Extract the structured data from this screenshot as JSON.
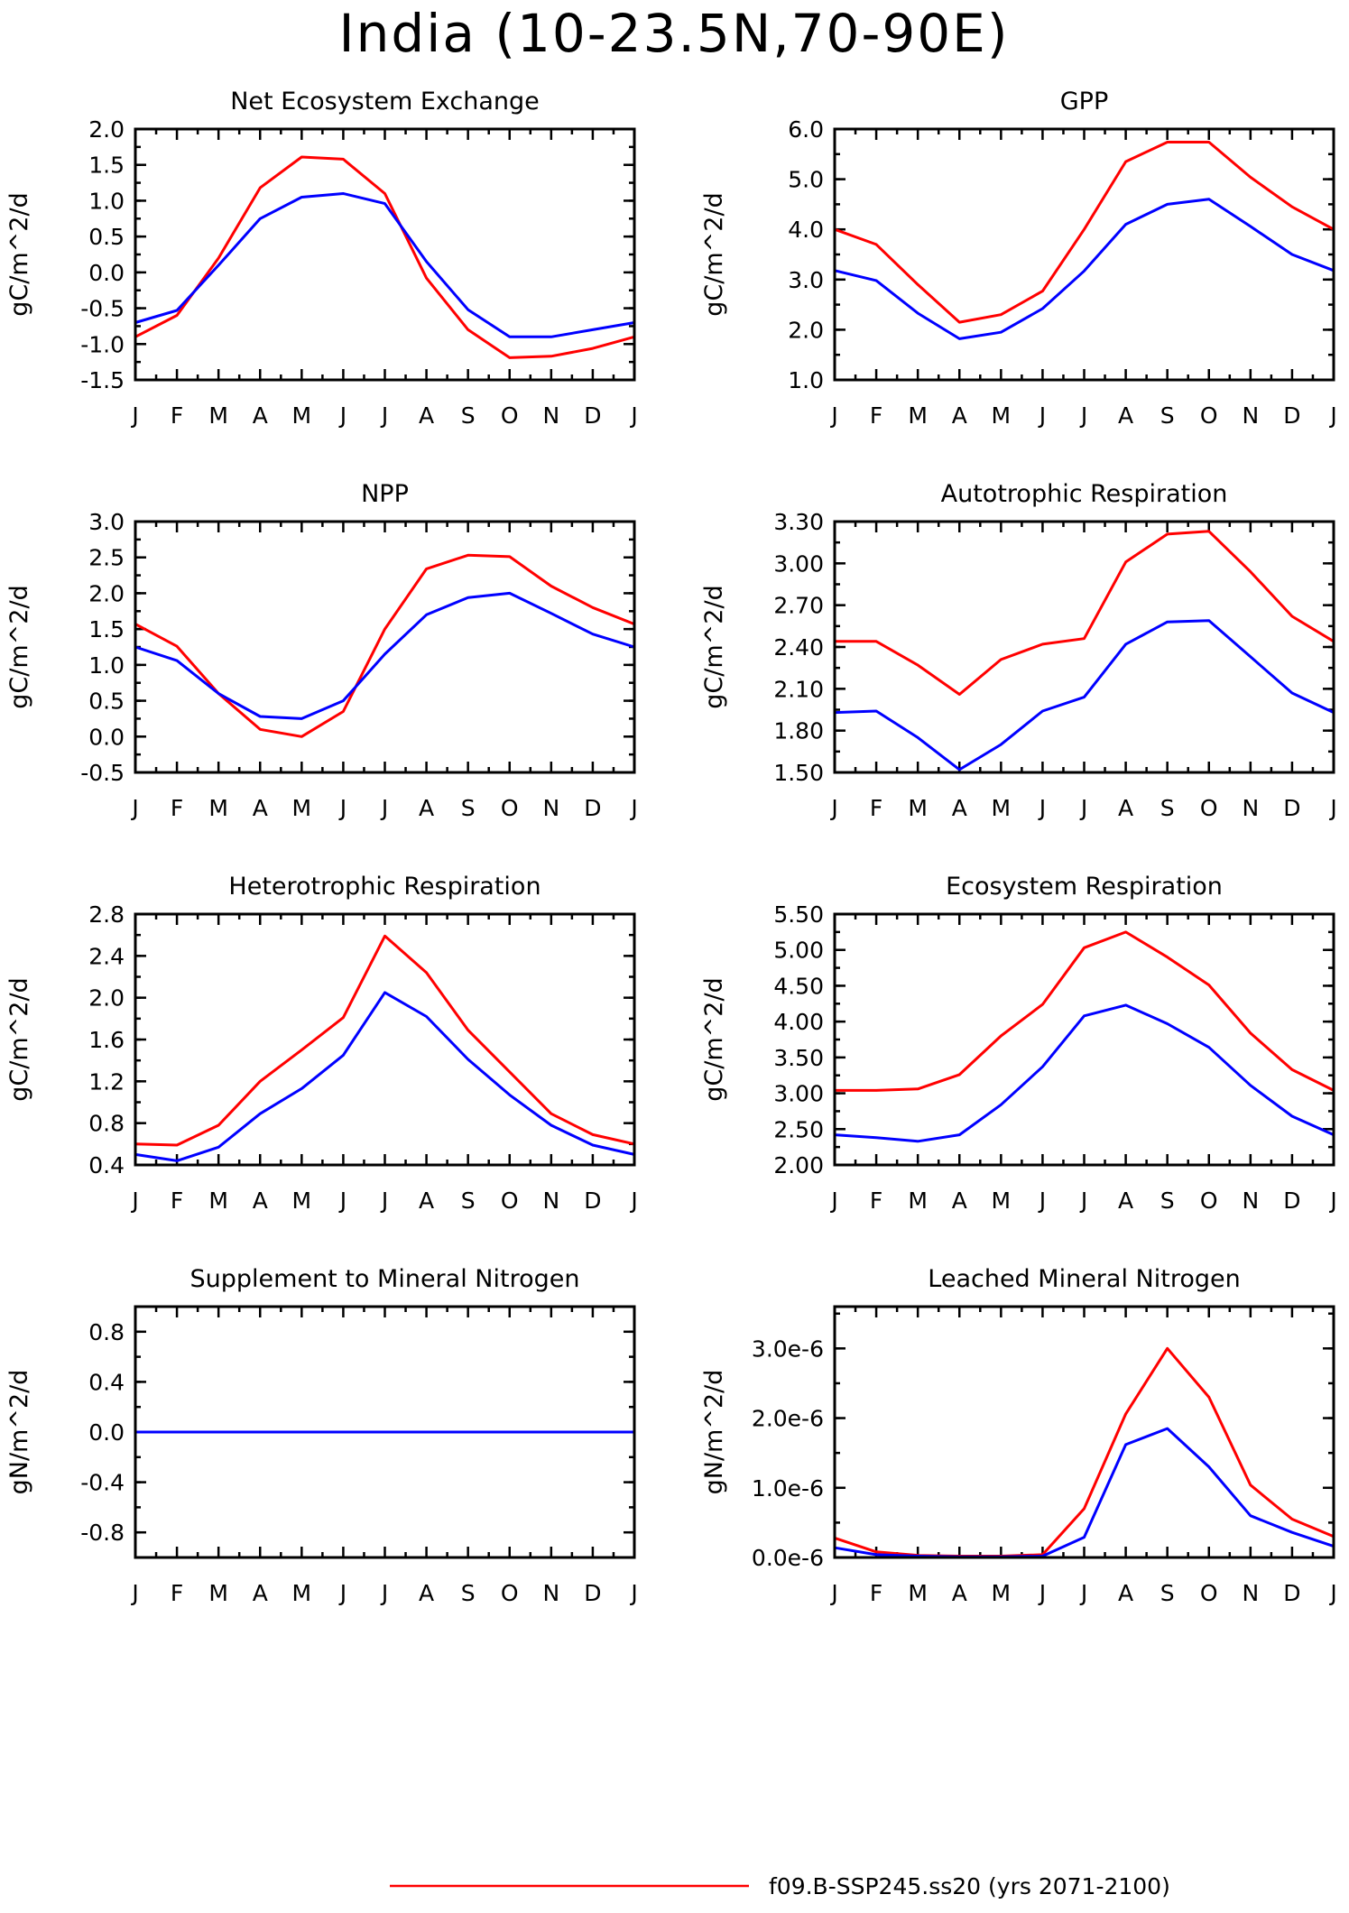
{
  "title": "India (10-23.5N,70-90E)",
  "colors": {
    "red": "#ff0000",
    "blue": "#0000ff"
  },
  "legend": [
    {
      "label": "f09.B-SSP245.ss20 (yrs 2071-2100)",
      "color": "#ff0000"
    }
  ],
  "months": [
    "J",
    "F",
    "M",
    "A",
    "M",
    "J",
    "J",
    "A",
    "S",
    "O",
    "N",
    "D",
    "J"
  ],
  "chart_data": [
    {
      "type": "line",
      "title": "Net Ecosystem Exchange",
      "ylabel": "gC/m^2/d",
      "ylim": [
        -1.5,
        2.0
      ],
      "yticks": [
        -1.5,
        -1.0,
        -0.5,
        0.0,
        0.5,
        1.0,
        1.5,
        2.0
      ],
      "yticklabels": [
        "-1.5",
        "-1.0",
        "-0.5",
        "0.0",
        "0.5",
        "1.0",
        "1.5",
        "2.0"
      ],
      "minor_step": 0.25,
      "series": [
        {
          "color": "#ff0000",
          "values": [
            -0.9,
            -0.6,
            0.2,
            1.18,
            1.61,
            1.58,
            1.1,
            -0.08,
            -0.8,
            -1.19,
            -1.17,
            -1.06,
            -0.9
          ]
        },
        {
          "color": "#0000ff",
          "values": [
            -0.7,
            -0.53,
            0.1,
            0.75,
            1.05,
            1.1,
            0.96,
            0.15,
            -0.52,
            -0.9,
            -0.9,
            -0.8,
            -0.7
          ]
        }
      ]
    },
    {
      "type": "line",
      "title": "GPP",
      "ylabel": "gC/m^2/d",
      "ylim": [
        1.0,
        6.0
      ],
      "yticks": [
        1.0,
        2.0,
        3.0,
        4.0,
        5.0,
        6.0
      ],
      "yticklabels": [
        "1.0",
        "2.0",
        "3.0",
        "4.0",
        "5.0",
        "6.0"
      ],
      "minor_step": 0.5,
      "series": [
        {
          "color": "#ff0000",
          "values": [
            4.0,
            3.7,
            2.9,
            2.15,
            2.3,
            2.77,
            4.0,
            5.35,
            5.74,
            5.74,
            5.04,
            4.45,
            4.0
          ]
        },
        {
          "color": "#0000ff",
          "values": [
            3.18,
            2.98,
            2.33,
            1.82,
            1.95,
            2.42,
            3.17,
            4.1,
            4.5,
            4.6,
            4.06,
            3.5,
            3.18
          ]
        }
      ]
    },
    {
      "type": "line",
      "title": "NPP",
      "ylabel": "gC/m^2/d",
      "ylim": [
        -0.5,
        3.0
      ],
      "yticks": [
        -0.5,
        0.0,
        0.5,
        1.0,
        1.5,
        2.0,
        2.5,
        3.0
      ],
      "yticklabels": [
        "-0.5",
        "0.0",
        "0.5",
        "1.0",
        "1.5",
        "2.0",
        "2.5",
        "3.0"
      ],
      "minor_step": 0.25,
      "series": [
        {
          "color": "#ff0000",
          "values": [
            1.57,
            1.26,
            0.6,
            0.1,
            0.0,
            0.35,
            1.5,
            2.34,
            2.53,
            2.51,
            2.1,
            1.8,
            1.57
          ]
        },
        {
          "color": "#0000ff",
          "values": [
            1.25,
            1.06,
            0.6,
            0.28,
            0.25,
            0.5,
            1.15,
            1.7,
            1.94,
            2.0,
            1.72,
            1.43,
            1.25
          ]
        }
      ]
    },
    {
      "type": "line",
      "title": "Autotrophic Respiration",
      "ylabel": "gC/m^2/d",
      "ylim": [
        1.5,
        3.3
      ],
      "yticks": [
        1.5,
        1.8,
        2.1,
        2.4,
        2.7,
        3.0,
        3.3
      ],
      "yticklabels": [
        "1.50",
        "1.80",
        "2.10",
        "2.40",
        "2.70",
        "3.00",
        "3.30"
      ],
      "minor_step": 0.15,
      "series": [
        {
          "color": "#ff0000",
          "values": [
            2.44,
            2.44,
            2.27,
            2.06,
            2.31,
            2.42,
            2.46,
            3.01,
            3.21,
            3.23,
            2.94,
            2.62,
            2.44
          ]
        },
        {
          "color": "#0000ff",
          "values": [
            1.93,
            1.94,
            1.75,
            1.52,
            1.7,
            1.94,
            2.04,
            2.42,
            2.58,
            2.59,
            2.33,
            2.07,
            1.93
          ]
        }
      ]
    },
    {
      "type": "line",
      "title": "Heterotrophic Respiration",
      "ylabel": "gC/m^2/d",
      "ylim": [
        0.4,
        2.8
      ],
      "yticks": [
        0.4,
        0.8,
        1.2,
        1.6,
        2.0,
        2.4,
        2.8
      ],
      "yticklabels": [
        "0.4",
        "0.8",
        "1.2",
        "1.6",
        "2.0",
        "2.4",
        "2.8"
      ],
      "minor_step": 0.2,
      "series": [
        {
          "color": "#ff0000",
          "values": [
            0.6,
            0.59,
            0.78,
            1.2,
            1.5,
            1.81,
            2.59,
            2.24,
            1.69,
            1.29,
            0.89,
            0.69,
            0.6
          ]
        },
        {
          "color": "#0000ff",
          "values": [
            0.5,
            0.44,
            0.57,
            0.89,
            1.13,
            1.45,
            2.05,
            1.82,
            1.41,
            1.07,
            0.78,
            0.59,
            0.5
          ]
        }
      ]
    },
    {
      "type": "line",
      "title": "Ecosystem Respiration",
      "ylabel": "gC/m^2/d",
      "ylim": [
        2.0,
        5.5
      ],
      "yticks": [
        2.0,
        2.5,
        3.0,
        3.5,
        4.0,
        4.5,
        5.0,
        5.5
      ],
      "yticklabels": [
        "2.00",
        "2.50",
        "3.00",
        "3.50",
        "4.00",
        "4.50",
        "5.00",
        "5.50"
      ],
      "minor_step": 0.25,
      "series": [
        {
          "color": "#ff0000",
          "values": [
            3.04,
            3.04,
            3.06,
            3.26,
            3.8,
            4.24,
            5.03,
            5.25,
            4.9,
            4.51,
            3.84,
            3.33,
            3.04
          ]
        },
        {
          "color": "#0000ff",
          "values": [
            2.42,
            2.38,
            2.33,
            2.42,
            2.84,
            3.37,
            4.08,
            4.23,
            3.97,
            3.64,
            3.11,
            2.68,
            2.42
          ]
        }
      ]
    },
    {
      "type": "line",
      "title": "Supplement to Mineral Nitrogen",
      "ylabel": "gN/m^2/d",
      "ylim": [
        -1.0,
        1.0
      ],
      "yticks": [
        -0.8,
        -0.4,
        0.0,
        0.4,
        0.8
      ],
      "yticklabels": [
        "-0.8",
        "-0.4",
        "0.0",
        "0.4",
        "0.8"
      ],
      "minor_step": 0.2,
      "series": [
        {
          "color": "#ff0000",
          "values": [
            0,
            0,
            0,
            0,
            0,
            0,
            0,
            0,
            0,
            0,
            0,
            0,
            0
          ]
        },
        {
          "color": "#0000ff",
          "values": [
            0,
            0,
            0,
            0,
            0,
            0,
            0,
            0,
            0,
            0,
            0,
            0,
            0
          ]
        }
      ]
    },
    {
      "type": "line",
      "title": "Leached Mineral Nitrogen",
      "ylabel": "gN/m^2/d",
      "ylim": [
        0.0,
        3.6e-06
      ],
      "yticks": [
        0.0,
        1e-06,
        2e-06,
        3e-06
      ],
      "yticklabels": [
        "0.0e-6",
        "1.0e-6",
        "2.0e-6",
        "3.0e-6"
      ],
      "minor_step": 5e-07,
      "series": [
        {
          "color": "#ff0000",
          "values": [
            2.8e-07,
            8e-08,
            3e-08,
            2e-08,
            2e-08,
            4e-08,
            7e-07,
            2.06e-06,
            3e-06,
            2.3e-06,
            1.04e-06,
            5.5e-07,
            3e-07
          ]
        },
        {
          "color": "#0000ff",
          "values": [
            1.4e-07,
            4e-08,
            2e-08,
            1e-08,
            1e-08,
            2e-08,
            2.9e-07,
            1.62e-06,
            1.85e-06,
            1.3e-06,
            6e-07,
            3.6e-07,
            1.6e-07
          ]
        }
      ]
    }
  ]
}
